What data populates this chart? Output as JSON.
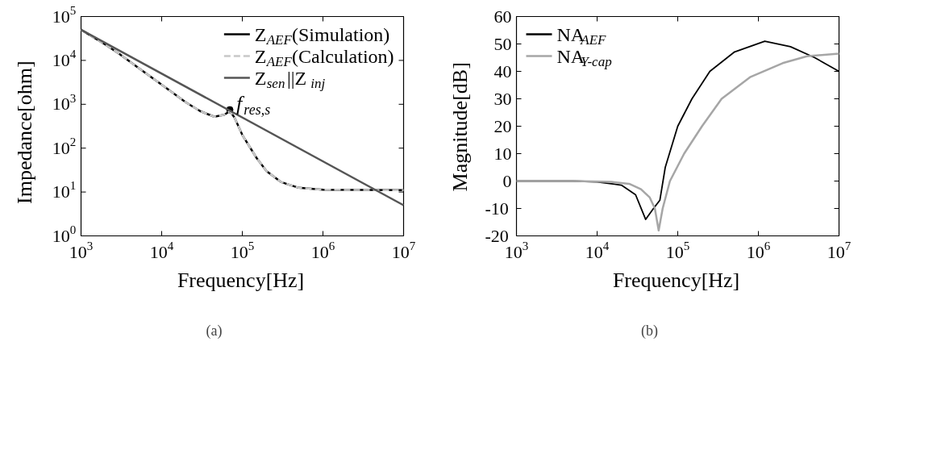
{
  "chart_data": [
    {
      "type": "line",
      "title": "(a)",
      "xlabel": "Frequency[Hz]",
      "ylabel": "Impedance[ohm]",
      "log": "xy",
      "xlim": [
        1000,
        10000000
      ],
      "ylim": [
        1,
        100000
      ],
      "xticks": [
        {
          "value": 1000,
          "label": "10$^{3}$"
        },
        {
          "value": 10000,
          "label": "10$^{4}$"
        },
        {
          "value": 100000,
          "label": "10$^{5}$"
        },
        {
          "value": 1000000,
          "label": "10$^{6}$"
        },
        {
          "value": 10000000,
          "label": "10$^{7}$"
        }
      ],
      "yticks": [
        {
          "value": 1,
          "label": "10$^{0}$"
        },
        {
          "value": 10,
          "label": "10$^{1}$"
        },
        {
          "value": 100,
          "label": "10$^{2}$"
        },
        {
          "value": 1000,
          "label": "10$^{3}$"
        },
        {
          "value": 10000,
          "label": "10$^{4}$"
        },
        {
          "value": 100000,
          "label": "10$^{5}$"
        }
      ],
      "grid": false,
      "legend": "top right",
      "x": [
        1000,
        2000,
        3000,
        5000,
        10000,
        20000,
        30000,
        45000,
        60000,
        70000,
        80000,
        100000,
        150000,
        200000,
        300000,
        500000,
        1000000,
        10000000
      ],
      "series": [
        {
          "name": "Z$_{AEF}$(Simulation)",
          "color": "#000000",
          "line_style": "solid",
          "values": [
            50000,
            23000,
            14000,
            7000,
            2800,
            1100,
            700,
            520,
            580,
            700,
            500,
            200,
            60,
            30,
            17,
            12.5,
            11.3,
            11
          ]
        },
        {
          "name": "Z$_{AEF}$(Calculation)",
          "color": "#c8c8c8",
          "line_style": "dashed",
          "values": [
            50000,
            23000,
            14000,
            7000,
            2800,
            1100,
            700,
            520,
            580,
            700,
            500,
            200,
            60,
            30,
            17,
            12.5,
            11.3,
            11
          ]
        },
        {
          "name": "Z$_{sen}$||Z$_{inj}$",
          "color": "#555555",
          "line_style": "solid",
          "x": [
            1000,
            10000000
          ],
          "values": [
            50000,
            5
          ]
        }
      ],
      "annotations": [
        {
          "text": "f$_{res,s}$",
          "x": 70000,
          "y": 750
        }
      ]
    },
    {
      "type": "line",
      "title": "(b)",
      "xlabel": "Frequency[Hz]",
      "ylabel": "Magnitude[dB]",
      "log": "x",
      "xlim": [
        1000,
        10000000
      ],
      "ylim": [
        -20,
        60
      ],
      "xticks": [
        {
          "value": 1000,
          "label": "10$^{3}$"
        },
        {
          "value": 10000,
          "label": "10$^{4}$"
        },
        {
          "value": 100000,
          "label": "10$^{5}$"
        },
        {
          "value": 1000000,
          "label": "10$^{6}$"
        },
        {
          "value": 10000000,
          "label": "10$^{7}$"
        }
      ],
      "yticks": [
        -20,
        -10,
        0,
        10,
        20,
        30,
        40,
        50,
        60
      ],
      "grid": false,
      "legend": "top left",
      "series": [
        {
          "name": "NA$_{AEF}$",
          "color": "#000000",
          "x": [
            1000,
            5000,
            10000,
            20000,
            30000,
            40000,
            50000,
            60000,
            70000,
            100000,
            150000,
            250000,
            500000,
            1200000,
            2500000,
            5000000,
            10000000
          ],
          "values": [
            0,
            0,
            -0.3,
            -1.5,
            -5,
            -14,
            -10,
            -7,
            5,
            20,
            30,
            40,
            47,
            51,
            49,
            45,
            40
          ]
        },
        {
          "name": "NA$_{Y-cap}$",
          "color": "#a6a6a6",
          "x": [
            1000,
            5000,
            15000,
            25000,
            35000,
            45000,
            52000,
            58000,
            65000,
            80000,
            120000,
            200000,
            350000,
            800000,
            2000000,
            4000000,
            10000000
          ],
          "values": [
            0,
            0,
            -0.3,
            -1,
            -3,
            -6,
            -10,
            -18,
            -10,
            0,
            10,
            20,
            30,
            38,
            43,
            45.5,
            46.5
          ]
        }
      ]
    }
  ]
}
